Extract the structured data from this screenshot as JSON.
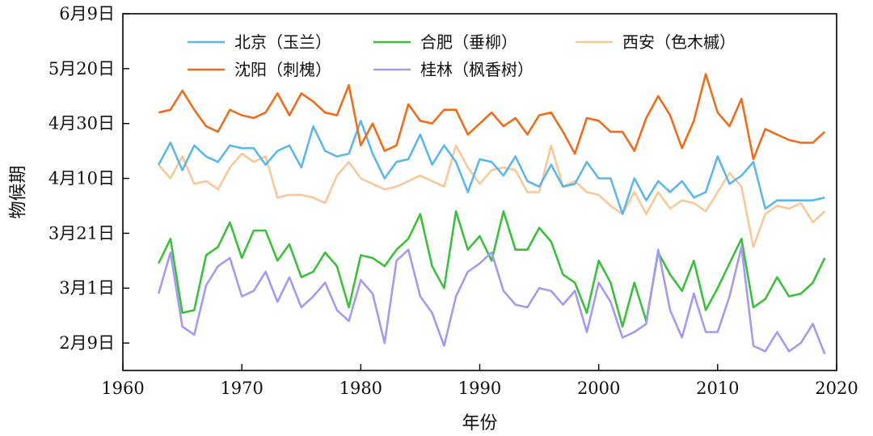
{
  "chart_data": {
    "type": "line",
    "xlabel": "年份",
    "ylabel": "物候期",
    "xlim": [
      1960,
      2020
    ],
    "ylim": [
      30,
      160
    ],
    "x_ticks": [
      1960,
      1970,
      1980,
      1990,
      2000,
      2010,
      2020
    ],
    "y_ticks": [
      {
        "value": 40,
        "label": "2月9日"
      },
      {
        "value": 60,
        "label": "3月1日"
      },
      {
        "value": 80,
        "label": "3月21日"
      },
      {
        "value": 100,
        "label": "4月10日"
      },
      {
        "value": 120,
        "label": "4月30日"
      },
      {
        "value": 140,
        "label": "5月20日"
      },
      {
        "value": 160,
        "label": "6月9日"
      }
    ],
    "grid": false,
    "legend_position": "top",
    "x": [
      1963,
      1964,
      1965,
      1966,
      1967,
      1968,
      1969,
      1970,
      1971,
      1972,
      1973,
      1974,
      1975,
      1976,
      1977,
      1978,
      1979,
      1980,
      1981,
      1982,
      1983,
      1984,
      1985,
      1986,
      1987,
      1988,
      1989,
      1990,
      1991,
      1992,
      1993,
      1994,
      1995,
      1996,
      1997,
      1998,
      1999,
      2000,
      2001,
      2002,
      2003,
      2004,
      2005,
      2006,
      2007,
      2008,
      2009,
      2010,
      2011,
      2012,
      2013,
      2014,
      2015,
      2016,
      2017,
      2018,
      2019
    ],
    "series": [
      {
        "name": "北京（玉兰）",
        "color": "#5db7ea",
        "values": [
          105,
          113,
          103,
          112,
          108,
          106,
          112,
          111,
          111,
          105,
          110,
          112,
          104,
          119,
          110,
          108,
          109,
          121,
          109,
          100,
          106,
          107,
          116,
          105,
          112,
          106,
          95,
          107,
          106,
          101,
          108,
          99,
          97,
          105,
          97,
          98,
          106,
          100,
          100,
          87,
          100,
          92,
          99,
          95,
          99,
          93,
          95,
          108,
          98,
          101,
          106,
          89,
          92,
          92,
          92,
          92,
          93
        ]
      },
      {
        "name": "合肥（垂柳）",
        "color": "#3cbf3c",
        "values": [
          69,
          78,
          51,
          52,
          72,
          75,
          84,
          71,
          81,
          81,
          70,
          76,
          64,
          66,
          73,
          68,
          53,
          72,
          71,
          68,
          74,
          78,
          87,
          68,
          60,
          88,
          74,
          79,
          70,
          88,
          74,
          74,
          82,
          77,
          65,
          62,
          51,
          70,
          62,
          46,
          62,
          48,
          73,
          65,
          59,
          70,
          52,
          60,
          69,
          78,
          53,
          56,
          64,
          57,
          58,
          62,
          71
        ]
      },
      {
        "name": "西安（色木槭）",
        "color": "#fac898",
        "values": [
          105,
          100,
          108,
          98,
          99,
          96,
          104,
          109,
          106,
          108,
          93,
          94,
          94,
          93,
          91,
          101,
          106,
          100,
          98,
          96,
          97,
          99,
          101,
          99,
          97,
          112,
          104,
          98,
          103,
          104,
          103,
          95,
          95,
          112,
          97,
          99,
          95,
          94,
          90,
          87,
          95,
          87,
          95,
          89,
          92,
          91,
          88,
          95,
          102,
          97,
          75,
          87,
          90,
          89,
          91,
          84,
          88
        ]
      },
      {
        "name": "沈阳（刺槐）",
        "color": "#ee6c1c",
        "values": [
          124,
          125,
          132,
          125,
          119,
          117,
          125,
          123,
          122,
          124,
          131,
          123,
          131,
          128,
          124,
          123,
          134,
          112,
          120,
          110,
          112,
          127,
          121,
          120,
          125,
          125,
          116,
          120,
          124,
          119,
          122,
          116,
          123,
          124,
          117,
          109,
          122,
          121,
          117,
          117,
          110,
          122,
          130,
          123,
          111,
          121,
          138,
          124,
          119,
          129,
          107,
          118,
          116,
          114,
          113,
          113,
          117
        ]
      },
      {
        "name": "桂林（枫香树）",
        "color": "#a49af0",
        "values": [
          58,
          73,
          46,
          43,
          61,
          68,
          71,
          57,
          59,
          66,
          55,
          64,
          53,
          57,
          62,
          52,
          48,
          63,
          58,
          40,
          70,
          74,
          57,
          51,
          39,
          57,
          66,
          69,
          73,
          59,
          54,
          53,
          60,
          59,
          54,
          59,
          44,
          62,
          55,
          42,
          44,
          47,
          74,
          52,
          42,
          58,
          44,
          44,
          57,
          75,
          39,
          37,
          44,
          37,
          40,
          47,
          36
        ]
      }
    ]
  }
}
